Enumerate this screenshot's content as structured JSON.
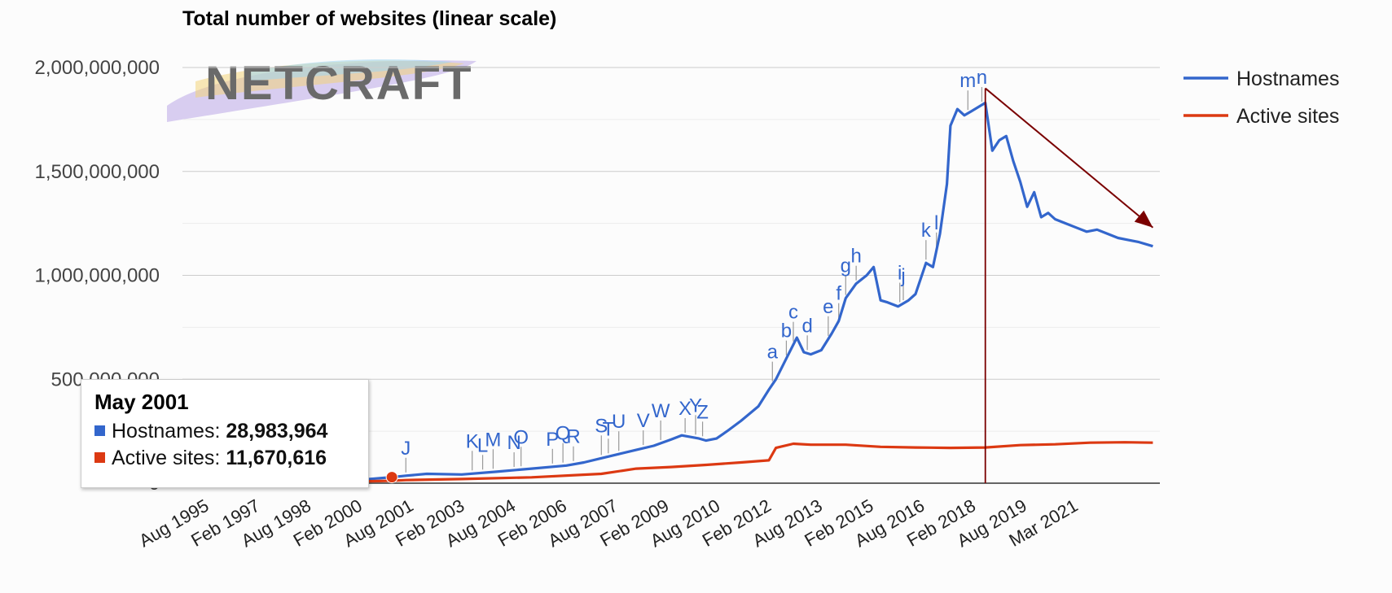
{
  "chart_data": {
    "type": "line",
    "title": "Total number of websites (linear scale)",
    "xlabel": "",
    "ylabel": "",
    "ylim": [
      0,
      2000000000
    ],
    "y_ticks": [
      0,
      500000000,
      1000000000,
      1500000000,
      2000000000
    ],
    "y_tick_labels": [
      "0",
      "500,000,000",
      "1,000,000,000",
      "1,500,000,000",
      "2,000,000,000"
    ],
    "x_tick_labels": [
      "Aug 1995",
      "Feb 1997",
      "Aug 1998",
      "Feb 2000",
      "Aug 2001",
      "Feb 2003",
      "Aug 2004",
      "Feb 2006",
      "Aug 2007",
      "Feb 2009",
      "Aug 2010",
      "Feb 2012",
      "Aug 2013",
      "Feb 2015",
      "Aug 2016",
      "Feb 2018",
      "Aug 2019",
      "Mar 2021"
    ],
    "xlim": [
      1995.0,
      2023.0
    ],
    "grid": true,
    "legend_position": "right",
    "series": [
      {
        "name": "Hostnames",
        "color": "#3366cc",
        "x": [
          1995.6,
          1997.0,
          1998.5,
          2000.0,
          2001.0,
          2001.4,
          2002.0,
          2003.0,
          2004.0,
          2005.0,
          2006.0,
          2006.5,
          2007.0,
          2007.5,
          2008.0,
          2008.5,
          2009.0,
          2009.3,
          2009.8,
          2010.0,
          2010.3,
          2010.6,
          2011.0,
          2011.5,
          2011.8,
          2012.0,
          2012.3,
          2012.6,
          2012.8,
          2013.0,
          2013.3,
          2013.6,
          2013.8,
          2014.0,
          2014.3,
          2014.6,
          2014.8,
          2015.0,
          2015.2,
          2015.5,
          2015.8,
          2016.0,
          2016.3,
          2016.5,
          2016.7,
          2016.9,
          2017.0,
          2017.2,
          2017.4,
          2017.6,
          2017.9,
          2018.0,
          2018.2,
          2018.4,
          2018.6,
          2018.8,
          2019.0,
          2019.2,
          2019.4,
          2019.6,
          2019.8,
          2020.0,
          2020.3,
          2020.6,
          2020.9,
          2021.2,
          2021.5,
          2021.8,
          2022.1,
          2022.4,
          2022.8
        ],
        "values": [
          20000,
          300000,
          3000000,
          15000000,
          28983964,
          36000000,
          45000000,
          42000000,
          55000000,
          70000000,
          85000000,
          100000000,
          120000000,
          140000000,
          160000000,
          180000000,
          210000000,
          230000000,
          215000000,
          205000000,
          215000000,
          250000000,
          300000000,
          370000000,
          450000000,
          500000000,
          600000000,
          700000000,
          630000000,
          620000000,
          640000000,
          720000000,
          780000000,
          890000000,
          960000000,
          1000000000,
          1040000000,
          880000000,
          870000000,
          850000000,
          880000000,
          910000000,
          1060000000,
          1040000000,
          1200000000,
          1440000000,
          1720000000,
          1800000000,
          1770000000,
          1790000000,
          1820000000,
          1830000000,
          1600000000,
          1650000000,
          1670000000,
          1550000000,
          1450000000,
          1330000000,
          1400000000,
          1280000000,
          1300000000,
          1270000000,
          1250000000,
          1230000000,
          1210000000,
          1220000000,
          1200000000,
          1180000000,
          1170000000,
          1160000000,
          1140000000
        ]
      },
      {
        "name": "Active sites",
        "color": "#dc3912",
        "x": [
          1995.6,
          1997.0,
          1998.5,
          2000.0,
          2001.0,
          2001.4,
          2003.0,
          2005.0,
          2007.0,
          2008.0,
          2009.0,
          2010.0,
          2011.0,
          2011.8,
          2012.0,
          2012.5,
          2013.0,
          2014.0,
          2015.0,
          2016.0,
          2017.0,
          2018.0,
          2019.0,
          2020.0,
          2021.0,
          2022.0,
          2022.8
        ],
        "values": [
          0,
          100000,
          2000000,
          8000000,
          11670616,
          15000000,
          20000000,
          28000000,
          45000000,
          70000000,
          78000000,
          88000000,
          100000000,
          110000000,
          170000000,
          190000000,
          185000000,
          185000000,
          175000000,
          172000000,
          170000000,
          172000000,
          183000000,
          187000000,
          195000000,
          197000000,
          195000000
        ]
      }
    ],
    "annotations": [
      {
        "label": "J",
        "x": 2001.4
      },
      {
        "label": "K",
        "x": 2003.3
      },
      {
        "label": "L",
        "x": 2003.6
      },
      {
        "label": "M",
        "x": 2003.9
      },
      {
        "label": "N",
        "x": 2004.5
      },
      {
        "label": "O",
        "x": 2004.7
      },
      {
        "label": "P",
        "x": 2005.6
      },
      {
        "label": "Q",
        "x": 2005.9
      },
      {
        "label": "R",
        "x": 2006.2
      },
      {
        "label": "S",
        "x": 2007.0
      },
      {
        "label": "T",
        "x": 2007.2
      },
      {
        "label": "U",
        "x": 2007.5
      },
      {
        "label": "V",
        "x": 2008.2
      },
      {
        "label": "W",
        "x": 2008.7
      },
      {
        "label": "X",
        "x": 2009.4
      },
      {
        "label": "Y",
        "x": 2009.7
      },
      {
        "label": "Z",
        "x": 2009.9
      },
      {
        "label": "a",
        "x": 2011.9
      },
      {
        "label": "b",
        "x": 2012.3
      },
      {
        "label": "c",
        "x": 2012.5
      },
      {
        "label": "d",
        "x": 2012.9
      },
      {
        "label": "e",
        "x": 2013.5
      },
      {
        "label": "f",
        "x": 2013.8
      },
      {
        "label": "g",
        "x": 2014.0
      },
      {
        "label": "h",
        "x": 2014.3
      },
      {
        "label": "i",
        "x": 2015.55
      },
      {
        "label": "j",
        "x": 2015.65
      },
      {
        "label": "k",
        "x": 2016.3
      },
      {
        "label": "l",
        "x": 2016.6
      },
      {
        "label": "m",
        "x": 2017.5
      },
      {
        "label": "n",
        "x": 2017.9
      }
    ],
    "highlight_x": 2018.0,
    "trend_arrow": {
      "from": {
        "x": 2018.0,
        "y": 1900000000
      },
      "to": {
        "x": 2022.8,
        "y": 1230000000
      },
      "color": "#7a0000"
    },
    "focus_point": {
      "x": 2001.0,
      "y": 28983964
    }
  },
  "logo": {
    "text": "NETCRAFT"
  },
  "tooltip": {
    "title": "May 2001",
    "rows": [
      {
        "label": "Hostnames:",
        "value": "28,983,964",
        "color": "#3366cc"
      },
      {
        "label": "Active sites:",
        "value": "11,670,616",
        "color": "#dc3912"
      }
    ]
  }
}
